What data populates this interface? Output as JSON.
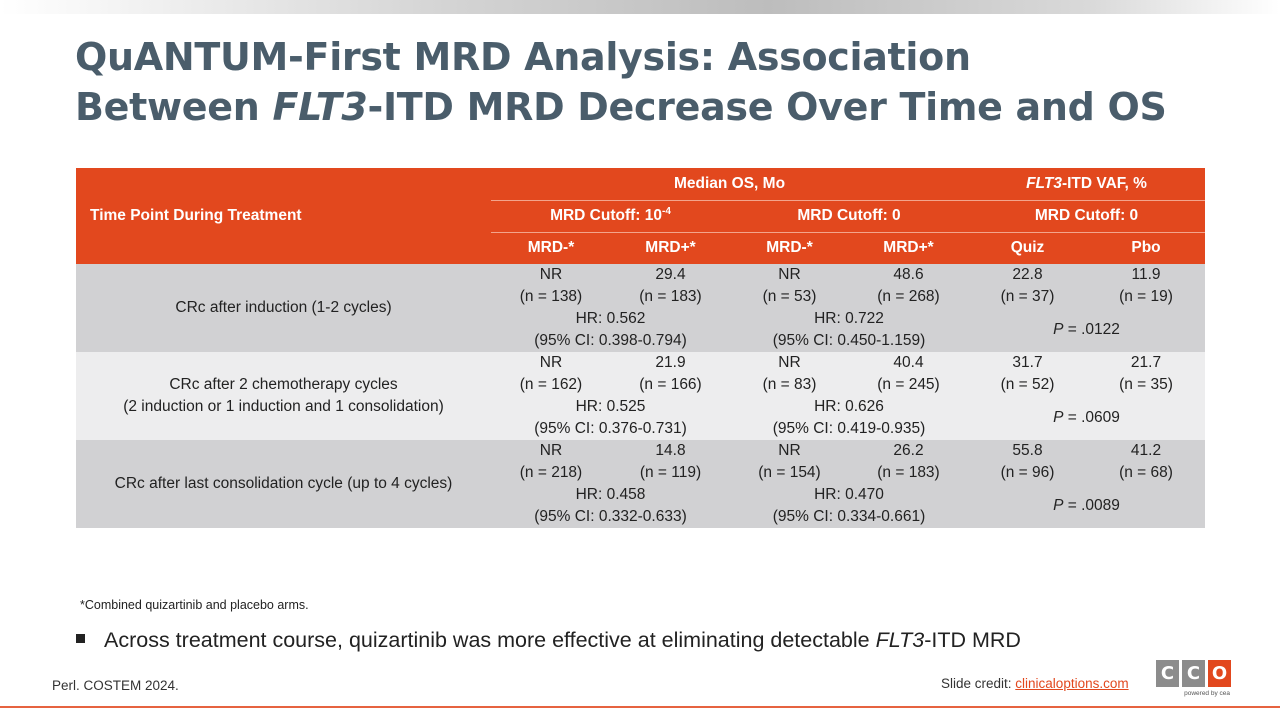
{
  "title": {
    "line1": "QuANTUM-First MRD Analysis: Association",
    "line2_prefix": "Between ",
    "line2_italic": "FLT3",
    "line2_suffix": "-ITD MRD Decrease Over Time and OS"
  },
  "table": {
    "header": {
      "time_point": "Time Point During Treatment",
      "median_os": "Median OS, Mo",
      "vaf_italic": "FLT3",
      "vaf_suffix": "-ITD VAF, %",
      "cutoff_1e4_prefix": "MRD Cutoff: 10",
      "cutoff_1e4_exp": "-4",
      "cutoff_0_os": "MRD Cutoff: 0",
      "cutoff_0_vaf": "MRD Cutoff: 0",
      "col_mrd_neg_1": "MRD-*",
      "col_mrd_pos_1": "MRD+*",
      "col_mrd_neg_2": "MRD-*",
      "col_mrd_pos_2": "MRD+*",
      "col_quiz": "Quiz",
      "col_pbo": "Pbo"
    },
    "rows": [
      {
        "label_line1": "CRc after induction (1-2 cycles)",
        "label_line2": "",
        "values": [
          {
            "v": "NR",
            "n": "(n = 138)"
          },
          {
            "v": "29.4",
            "n": "(n = 183)"
          },
          {
            "v": "NR",
            "n": "(n = 53)"
          },
          {
            "v": "48.6",
            "n": "(n = 268)"
          },
          {
            "v": "22.8",
            "n": "(n = 37)"
          },
          {
            "v": "11.9",
            "n": "(n = 19)"
          }
        ],
        "hr1": "HR: 0.562",
        "ci1": "(95% CI: 0.398-0.794)",
        "hr2": "HR: 0.722",
        "ci2": "(95% CI: 0.450-1.159)",
        "p_label": "P",
        "p_value": " = .0122"
      },
      {
        "label_line1": "CRc after 2 chemotherapy cycles",
        "label_line2": "(2 induction or 1 induction and 1 consolidation)",
        "values": [
          {
            "v": "NR",
            "n": "(n = 162)"
          },
          {
            "v": "21.9",
            "n": "(n = 166)"
          },
          {
            "v": "NR",
            "n": "(n = 83)"
          },
          {
            "v": "40.4",
            "n": "(n = 245)"
          },
          {
            "v": "31.7",
            "n": "(n = 52)"
          },
          {
            "v": "21.7",
            "n": "(n = 35)"
          }
        ],
        "hr1": "HR: 0.525",
        "ci1": "(95% CI: 0.376-0.731)",
        "hr2": "HR: 0.626",
        "ci2": "(95% CI: 0.419-0.935)",
        "p_label": "P",
        "p_value": " = .0609"
      },
      {
        "label_line1": "CRc after last consolidation cycle (up to 4 cycles)",
        "label_line2": "",
        "values": [
          {
            "v": "NR",
            "n": "(n = 218)"
          },
          {
            "v": "14.8",
            "n": "(n = 119)"
          },
          {
            "v": "NR",
            "n": "(n = 154)"
          },
          {
            "v": "26.2",
            "n": "(n = 183)"
          },
          {
            "v": "55.8",
            "n": "(n = 96)"
          },
          {
            "v": "41.2",
            "n": "(n = 68)"
          }
        ],
        "hr1": "HR: 0.458",
        "ci1": "(95% CI: 0.332-0.633)",
        "hr2": "HR: 0.470",
        "ci2": "(95% CI: 0.334-0.661)",
        "p_label": "P",
        "p_value": " = .0089"
      }
    ]
  },
  "footnote": "*Combined quizartinib and placebo arms.",
  "bullet": {
    "prefix": "Across treatment course, quizartinib was more effective at eliminating detectable ",
    "italic": "FLT3",
    "suffix": "-ITD MRD"
  },
  "source": "Perl. COSTEM 2024.",
  "credit": {
    "label": "Slide credit: ",
    "link": "clinicaloptions.com"
  },
  "logo": {
    "letters": [
      "C",
      "C",
      "O"
    ],
    "tagline": "powered by cea"
  },
  "colors": {
    "accent": "#e2481e",
    "title": "#4a5d6b",
    "row_dark": "#d1d1d3",
    "row_light": "#ededee"
  }
}
